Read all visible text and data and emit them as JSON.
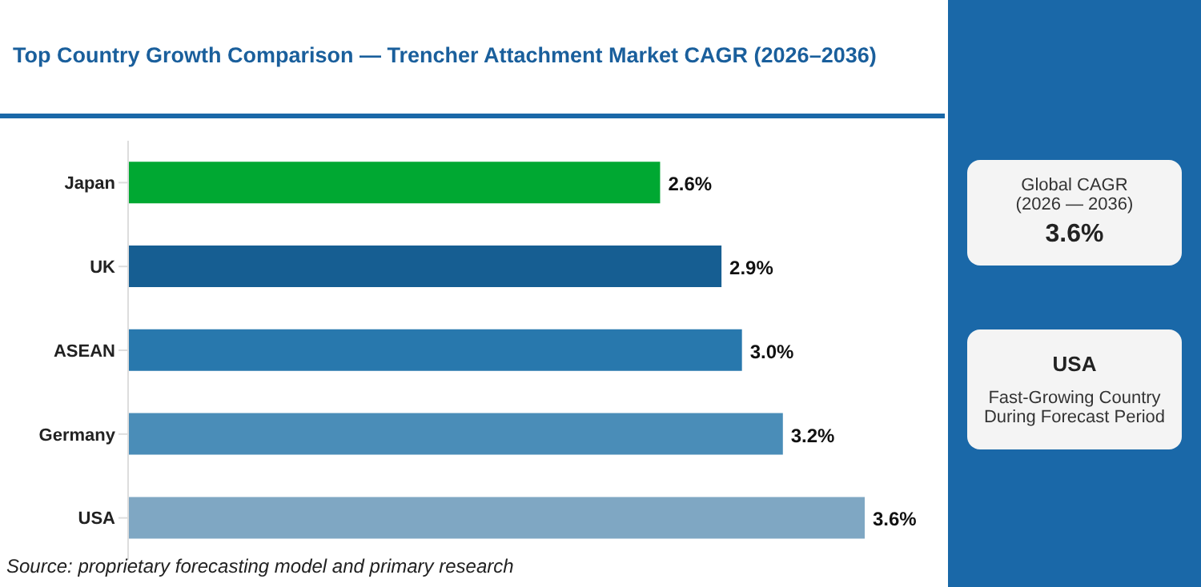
{
  "chart_data": {
    "type": "bar",
    "orientation": "horizontal",
    "title": "Top Country Growth Comparison — Trencher Attachment Market CAGR (2026–2036)",
    "categories": [
      "Japan",
      "UK",
      "ASEAN",
      "Germany",
      "USA"
    ],
    "values": [
      2.6,
      2.9,
      3.0,
      3.2,
      3.6
    ],
    "colors": [
      "#00a832",
      "#165e92",
      "#2878ad",
      "#4a8db8",
      "#7fa7c3"
    ],
    "value_labels": [
      "2.6%",
      "2.9%",
      "3.0%",
      "3.2%",
      "3.6%"
    ],
    "grid": false,
    "legend": false,
    "annotations": [
      "Source: proprietary forecasting model and primary research",
      "Global CAGR",
      "(2026 — 2036)",
      "3.6%",
      "USA",
      "Fast-Growing Country During Forecast Period"
    ]
  }
}
